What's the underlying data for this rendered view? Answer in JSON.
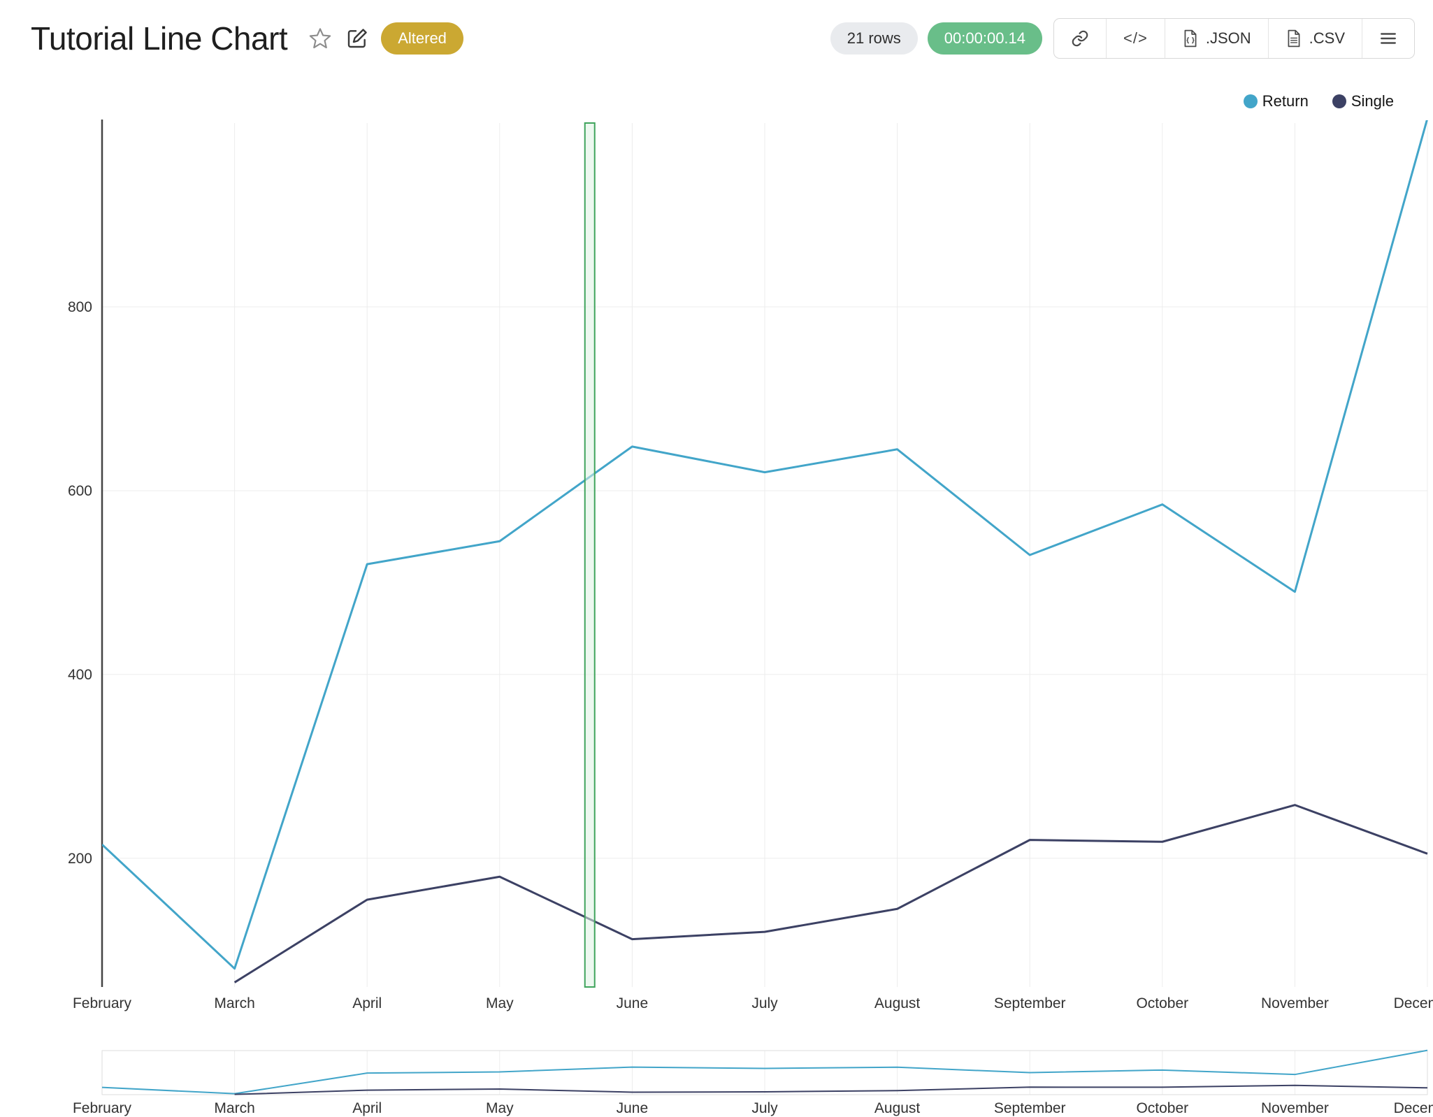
{
  "header": {
    "title": "Tutorial Line Chart",
    "altered_badge": "Altered",
    "rows_badge": "21 rows",
    "elapsed_badge": "00:00:00.14",
    "code_glyph": "</>",
    "export_json": ".JSON",
    "export_csv": ".CSV"
  },
  "colors": {
    "altered_bg": "#CBA832",
    "elapsed_bg": "#69BE89",
    "rows_bg": "#E9EBEE",
    "grid": "#ECECEC",
    "axis": "#444444"
  },
  "chart_data": {
    "type": "line",
    "title": "",
    "xlabel": "",
    "ylabel": "",
    "x": [
      "February",
      "March",
      "April",
      "May",
      "June",
      "July",
      "August",
      "September",
      "October",
      "November",
      "December"
    ],
    "series": [
      {
        "name": "Return",
        "color": "#42A5C9",
        "values": [
          215,
          80,
          520,
          545,
          648,
          620,
          645,
          530,
          585,
          490,
          1005
        ]
      },
      {
        "name": "Single",
        "color": "#3C4164",
        "values": [
          null,
          65,
          155,
          180,
          112,
          120,
          145,
          220,
          218,
          258,
          205
        ]
      }
    ],
    "yticks": [
      200,
      400,
      600,
      800
    ],
    "ylim": [
      60,
      1000
    ],
    "grid": true,
    "legend_position": "top-right",
    "range_slider": true,
    "highlight_band": {
      "x_index": 3.68,
      "stroke": "#3FA45C",
      "fill": "#DFF2E3"
    }
  }
}
